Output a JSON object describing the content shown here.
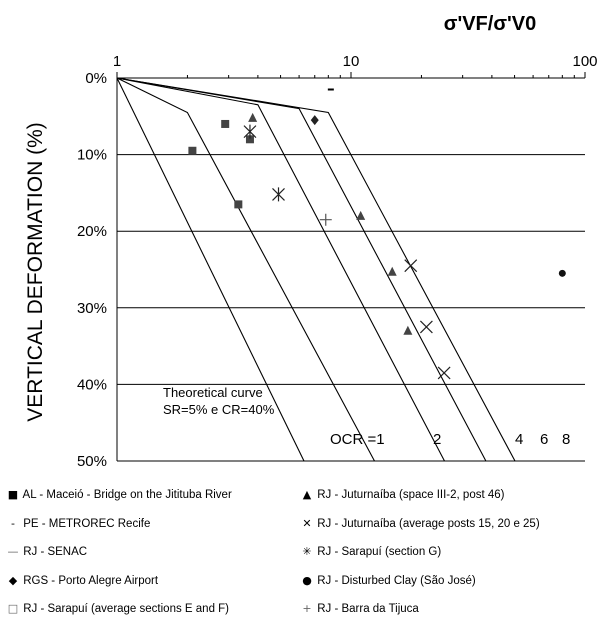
{
  "chart_data": {
    "type": "scatter",
    "title": "σ'VF/σ'V0",
    "ylabel": "VERTICAL DEFORMATION (%)",
    "xlabel": "",
    "xscale": "log",
    "xlim": [
      1,
      100
    ],
    "ylim": [
      0,
      50
    ],
    "y_inverted": true,
    "x_ticks": [
      "1",
      "10",
      "100"
    ],
    "y_ticks": [
      "0%",
      "10%",
      "20%",
      "30%",
      "40%",
      "50%"
    ],
    "grid": "horizontal",
    "annotation": [
      "Theoretical curve",
      "SR=5% e CR=40%"
    ],
    "ocr_labels": [
      "OCR =1",
      "2",
      "4",
      "6",
      "8"
    ],
    "curves": [
      {
        "ocr": "1",
        "points": [
          [
            1,
            0
          ],
          [
            6.3,
            50
          ]
        ]
      },
      {
        "ocr": "2",
        "points": [
          [
            1,
            0
          ],
          [
            2.0,
            4.5
          ],
          [
            12.6,
            50
          ]
        ]
      },
      {
        "ocr": "4",
        "points": [
          [
            1,
            0
          ],
          [
            4.0,
            3.5
          ],
          [
            25.1,
            50
          ]
        ]
      },
      {
        "ocr": "6",
        "points": [
          [
            1,
            0
          ],
          [
            6.0,
            4.0
          ],
          [
            37.7,
            50
          ]
        ]
      },
      {
        "ocr": "8",
        "points": [
          [
            1,
            0
          ],
          [
            8.0,
            4.5
          ],
          [
            50.2,
            50
          ]
        ]
      }
    ],
    "series": [
      {
        "name": "AL - Maceió - Bridge on the Jitituba River",
        "marker": "square",
        "points": [
          [
            2.1,
            9.5
          ],
          [
            2.9,
            6.0
          ],
          [
            3.3,
            16.5
          ],
          [
            3.7,
            8.0
          ]
        ]
      },
      {
        "name": "PE - METROREC Recife",
        "marker": "dash",
        "points": [
          [
            8.2,
            1.5
          ]
        ]
      },
      {
        "name": "RJ - SENAC",
        "marker": "hline",
        "points": []
      },
      {
        "name": "RGS - Porto Alegre Airport",
        "marker": "diamond",
        "points": [
          [
            7.0,
            5.5
          ]
        ]
      },
      {
        "name": "RJ - Sarapuí (average sections E and F)",
        "marker": "open-square",
        "points": []
      },
      {
        "name": "RJ - Juturnaíba (space III-2, post 46)",
        "marker": "triangle",
        "points": [
          [
            3.8,
            5.2
          ],
          [
            11.0,
            18.0
          ],
          [
            15.0,
            25.3
          ],
          [
            17.5,
            33.0
          ]
        ]
      },
      {
        "name": "RJ - Juturnaíba (average posts 15, 20 e 25)",
        "marker": "x",
        "points": [
          [
            18.0,
            24.5
          ],
          [
            21.0,
            32.5
          ],
          [
            25.0,
            38.5
          ]
        ]
      },
      {
        "name": "RJ - Sarapuí (section G)",
        "marker": "asterisk",
        "points": [
          [
            3.7,
            7.0
          ],
          [
            4.9,
            15.2
          ]
        ]
      },
      {
        "name": "RJ - Disturbed Clay (São José)",
        "marker": "circle",
        "points": [
          [
            80.0,
            25.5
          ]
        ]
      },
      {
        "name": "RJ - Barra da Tijuca",
        "marker": "plus",
        "points": [
          [
            7.8,
            18.5
          ]
        ]
      }
    ]
  }
}
